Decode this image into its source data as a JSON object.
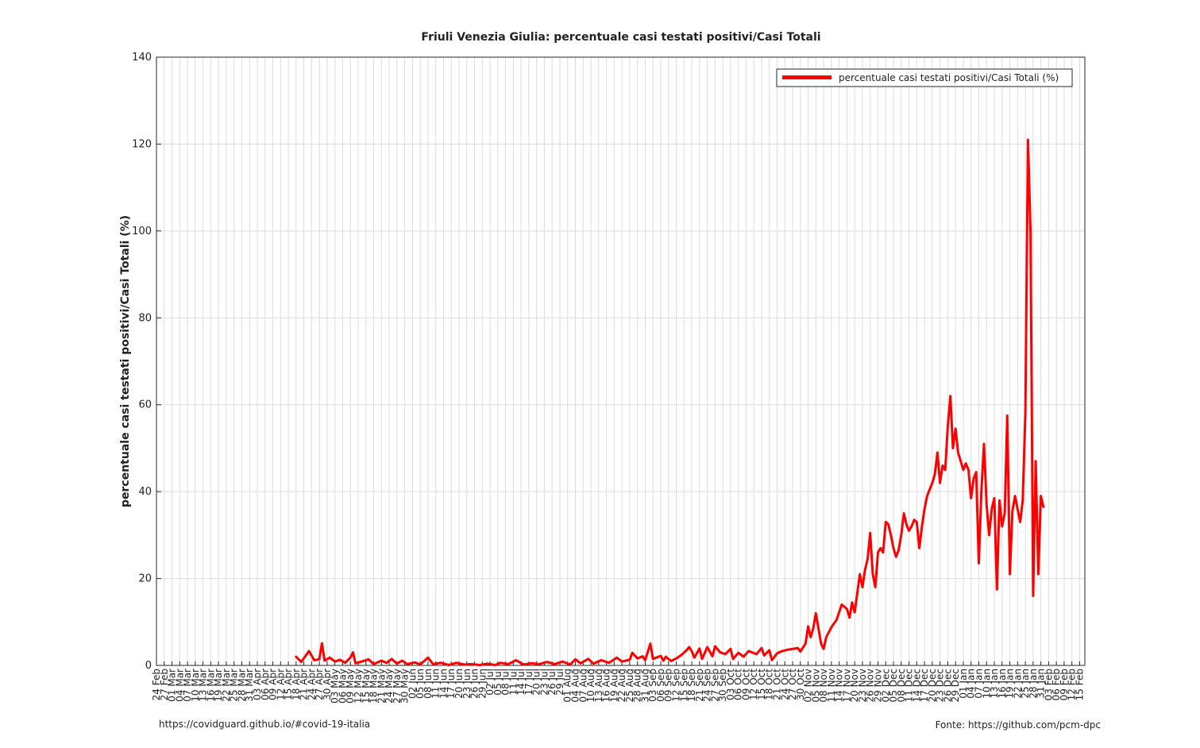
{
  "chart_data": {
    "type": "line",
    "title": "Friuli Venezia Giulia: percentuale casi testati positivi/Casi Totali",
    "xlabel": "",
    "ylabel": "percentuale casi testati positivi/Casi Totali (%)",
    "ylim": [
      0,
      140
    ],
    "yticks": [
      0,
      20,
      40,
      60,
      80,
      100,
      120,
      140
    ],
    "grid": true,
    "legend_placement": "top-right",
    "x_start": "2020-02-24",
    "x_end": "2021-02-17",
    "xtick_labels": [
      "24 Feb",
      "27 Feb",
      "01 Mar",
      "04 Mar",
      "07 Mar",
      "10 Mar",
      "13 Mar",
      "16 Mar",
      "19 Mar",
      "22 Mar",
      "25 Mar",
      "28 Mar",
      "31 Mar",
      "03 Apr",
      "06 Apr",
      "09 Apr",
      "12 Apr",
      "15 Apr",
      "18 Apr",
      "21 Apr",
      "24 Apr",
      "27 Apr",
      "30 Apr",
      "03 May",
      "06 May",
      "09 May",
      "12 May",
      "15 May",
      "18 May",
      "21 May",
      "24 May",
      "27 May",
      "30 May",
      "02 Jun",
      "05 Jun",
      "08 Jun",
      "11 Jun",
      "14 Jun",
      "17 Jun",
      "20 Jun",
      "23 Jun",
      "26 Jun",
      "29 Jun",
      "02 Jul",
      "05 Jul",
      "08 Jul",
      "11 Jul",
      "14 Jul",
      "17 Jul",
      "20 Jul",
      "23 Jul",
      "26 Jul",
      "29 Jul",
      "01 Aug",
      "04 Aug",
      "07 Aug",
      "10 Aug",
      "13 Aug",
      "16 Aug",
      "19 Aug",
      "22 Aug",
      "25 Aug",
      "28 Aug",
      "31 Aug",
      "03 Sep",
      "06 Sep",
      "09 Sep",
      "12 Sep",
      "15 Sep",
      "18 Sep",
      "21 Sep",
      "24 Sep",
      "27 Sep",
      "30 Sep",
      "03 Oct",
      "06 Oct",
      "09 Oct",
      "12 Oct",
      "15 Oct",
      "18 Oct",
      "21 Oct",
      "24 Oct",
      "27 Oct",
      "30 Oct",
      "02 Nov",
      "05 Nov",
      "08 Nov",
      "11 Nov",
      "14 Nov",
      "17 Nov",
      "20 Nov",
      "23 Nov",
      "26 Nov",
      "29 Nov",
      "02 Dec",
      "05 Dec",
      "08 Dec",
      "11 Dec",
      "14 Dec",
      "17 Dec",
      "20 Dec",
      "23 Dec",
      "26 Dec",
      "29 Dec",
      "01 Jan",
      "04 Jan",
      "07 Jan",
      "10 Jan",
      "13 Jan",
      "16 Jan",
      "19 Jan",
      "22 Jan",
      "25 Jan",
      "28 Jan",
      "31 Jan",
      "03 Feb",
      "06 Feb",
      "09 Feb",
      "12 Feb",
      "15 Feb"
    ],
    "series": [
      {
        "name": "percentuale casi testati positivi/Casi Totali (%)",
        "color": "#ff0000",
        "points": [
          [
            "2020-04-18",
            2
          ],
          [
            "2020-04-20",
            0.8
          ],
          [
            "2020-04-22",
            2.5
          ],
          [
            "2020-04-23",
            3.3
          ],
          [
            "2020-04-25",
            1.2
          ],
          [
            "2020-04-27",
            1.4
          ],
          [
            "2020-04-28",
            5.1
          ],
          [
            "2020-04-29",
            1.1
          ],
          [
            "2020-05-01",
            1.8
          ],
          [
            "2020-05-03",
            0.9
          ],
          [
            "2020-05-05",
            1.3
          ],
          [
            "2020-05-07",
            0.6
          ],
          [
            "2020-05-09",
            1.8
          ],
          [
            "2020-05-10",
            3.0
          ],
          [
            "2020-05-11",
            0.5
          ],
          [
            "2020-05-14",
            1.0
          ],
          [
            "2020-05-16",
            1.4
          ],
          [
            "2020-05-18",
            0.3
          ],
          [
            "2020-05-21",
            1.1
          ],
          [
            "2020-05-23",
            0.6
          ],
          [
            "2020-05-25",
            1.5
          ],
          [
            "2020-05-27",
            0.4
          ],
          [
            "2020-05-29",
            1.1
          ],
          [
            "2020-05-31",
            0.3
          ],
          [
            "2020-06-03",
            0.7
          ],
          [
            "2020-06-05",
            0.2
          ],
          [
            "2020-06-08",
            1.8
          ],
          [
            "2020-06-10",
            0.3
          ],
          [
            "2020-06-13",
            0.6
          ],
          [
            "2020-06-16",
            0.1
          ],
          [
            "2020-06-19",
            0.6
          ],
          [
            "2020-06-22",
            0.2
          ],
          [
            "2020-06-25",
            0.3
          ],
          [
            "2020-06-28",
            0.1
          ],
          [
            "2020-07-01",
            0.4
          ],
          [
            "2020-07-04",
            0.1
          ],
          [
            "2020-07-06",
            0.6
          ],
          [
            "2020-07-09",
            0.3
          ],
          [
            "2020-07-12",
            1.2
          ],
          [
            "2020-07-15",
            0.2
          ],
          [
            "2020-07-18",
            0.5
          ],
          [
            "2020-07-21",
            0.3
          ],
          [
            "2020-07-24",
            0.8
          ],
          [
            "2020-07-27",
            0.3
          ],
          [
            "2020-07-30",
            0.9
          ],
          [
            "2020-08-02",
            0.2
          ],
          [
            "2020-08-04",
            1.4
          ],
          [
            "2020-08-06",
            0.5
          ],
          [
            "2020-08-09",
            1.5
          ],
          [
            "2020-08-11",
            0.4
          ],
          [
            "2020-08-14",
            1.2
          ],
          [
            "2020-08-17",
            0.6
          ],
          [
            "2020-08-20",
            1.8
          ],
          [
            "2020-08-22",
            0.9
          ],
          [
            "2020-08-25",
            1.3
          ],
          [
            "2020-08-26",
            2.9
          ],
          [
            "2020-08-28",
            1.6
          ],
          [
            "2020-08-30",
            2.1
          ],
          [
            "2020-08-31",
            1.2
          ],
          [
            "2020-09-02",
            5.0
          ],
          [
            "2020-09-03",
            1.5
          ],
          [
            "2020-09-06",
            2.2
          ],
          [
            "2020-09-07",
            1.1
          ],
          [
            "2020-09-08",
            2.0
          ],
          [
            "2020-09-10",
            1.0
          ],
          [
            "2020-09-12",
            1.6
          ],
          [
            "2020-09-14",
            2.4
          ],
          [
            "2020-09-16",
            3.5
          ],
          [
            "2020-09-17",
            4.2
          ],
          [
            "2020-09-18",
            3.3
          ],
          [
            "2020-09-19",
            1.8
          ],
          [
            "2020-09-21",
            3.9
          ],
          [
            "2020-09-22",
            1.5
          ],
          [
            "2020-09-24",
            4.2
          ],
          [
            "2020-09-26",
            2.1
          ],
          [
            "2020-09-27",
            4.4
          ],
          [
            "2020-09-29",
            3.0
          ],
          [
            "2020-10-01",
            2.6
          ],
          [
            "2020-10-03",
            3.8
          ],
          [
            "2020-10-04",
            1.5
          ],
          [
            "2020-10-06",
            2.9
          ],
          [
            "2020-10-08",
            2.0
          ],
          [
            "2020-10-10",
            3.3
          ],
          [
            "2020-10-13",
            2.6
          ],
          [
            "2020-10-15",
            4.0
          ],
          [
            "2020-10-16",
            2.3
          ],
          [
            "2020-10-18",
            3.5
          ],
          [
            "2020-10-19",
            1.2
          ],
          [
            "2020-10-21",
            2.8
          ],
          [
            "2020-10-23",
            3.3
          ],
          [
            "2020-10-25",
            3.6
          ],
          [
            "2020-10-27",
            3.8
          ],
          [
            "2020-10-29",
            4.0
          ],
          [
            "2020-10-30",
            3.2
          ],
          [
            "2020-11-01",
            5.0
          ],
          [
            "2020-11-02",
            9.0
          ],
          [
            "2020-11-03",
            6.5
          ],
          [
            "2020-11-04",
            8.6
          ],
          [
            "2020-11-05",
            12.0
          ],
          [
            "2020-11-07",
            5.0
          ],
          [
            "2020-11-08",
            3.8
          ],
          [
            "2020-11-09",
            6.5
          ],
          [
            "2020-11-11",
            8.8
          ],
          [
            "2020-11-13",
            10.5
          ],
          [
            "2020-11-15",
            14.0
          ],
          [
            "2020-11-17",
            13.0
          ],
          [
            "2020-11-18",
            11.0
          ],
          [
            "2020-11-19",
            14.5
          ],
          [
            "2020-11-20",
            12.2
          ],
          [
            "2020-11-22",
            21.0
          ],
          [
            "2020-11-23",
            18.0
          ],
          [
            "2020-11-24",
            22.0
          ],
          [
            "2020-11-25",
            24.5
          ],
          [
            "2020-11-26",
            30.5
          ],
          [
            "2020-11-27",
            21.0
          ],
          [
            "2020-11-28",
            18.0
          ],
          [
            "2020-11-29",
            26.0
          ],
          [
            "2020-11-30",
            27.0
          ],
          [
            "2020-12-01",
            26.0
          ],
          [
            "2020-12-02",
            33.0
          ],
          [
            "2020-12-03",
            32.5
          ],
          [
            "2020-12-04",
            30.0
          ],
          [
            "2020-12-05",
            27.0
          ],
          [
            "2020-12-06",
            25.0
          ],
          [
            "2020-12-07",
            26.5
          ],
          [
            "2020-12-08",
            30.0
          ],
          [
            "2020-12-09",
            35.0
          ],
          [
            "2020-12-10",
            32.5
          ],
          [
            "2020-12-11",
            31.0
          ],
          [
            "2020-12-12",
            32.0
          ],
          [
            "2020-12-13",
            33.5
          ],
          [
            "2020-12-14",
            33.0
          ],
          [
            "2020-12-15",
            27.0
          ],
          [
            "2020-12-16",
            32.0
          ],
          [
            "2020-12-17",
            36.0
          ],
          [
            "2020-12-18",
            39.0
          ],
          [
            "2020-12-20",
            42.0
          ],
          [
            "2020-12-21",
            44.0
          ],
          [
            "2020-12-22",
            49.0
          ],
          [
            "2020-12-23",
            42.0
          ],
          [
            "2020-12-24",
            46.0
          ],
          [
            "2020-12-25",
            45.0
          ],
          [
            "2020-12-26",
            55.0
          ],
          [
            "2020-12-27",
            62.0
          ],
          [
            "2020-12-28",
            50.0
          ],
          [
            "2020-12-29",
            54.5
          ],
          [
            "2020-12-30",
            49.0
          ],
          [
            "2020-12-31",
            47.0
          ],
          [
            "2021-01-01",
            45.0
          ],
          [
            "2021-01-02",
            46.5
          ],
          [
            "2021-01-03",
            45.0
          ],
          [
            "2021-01-04",
            38.5
          ],
          [
            "2021-01-05",
            43.0
          ],
          [
            "2021-01-06",
            44.5
          ],
          [
            "2021-01-07",
            23.5
          ],
          [
            "2021-01-08",
            40.0
          ],
          [
            "2021-01-09",
            51.0
          ],
          [
            "2021-01-10",
            37.0
          ],
          [
            "2021-01-11",
            30.0
          ],
          [
            "2021-01-12",
            36.0
          ],
          [
            "2021-01-13",
            38.5
          ],
          [
            "2021-01-14",
            17.5
          ],
          [
            "2021-01-15",
            38.0
          ],
          [
            "2021-01-16",
            32.0
          ],
          [
            "2021-01-17",
            35.0
          ],
          [
            "2021-01-18",
            57.5
          ],
          [
            "2021-01-19",
            21.0
          ],
          [
            "2021-01-20",
            35.5
          ],
          [
            "2021-01-21",
            39.0
          ],
          [
            "2021-01-22",
            36.0
          ],
          [
            "2021-01-23",
            33.0
          ],
          [
            "2021-01-24",
            38.0
          ],
          [
            "2021-01-25",
            58.0
          ],
          [
            "2021-01-26",
            121.0
          ],
          [
            "2021-01-27",
            100.0
          ],
          [
            "2021-01-28",
            16.0
          ],
          [
            "2021-01-29",
            47.0
          ],
          [
            "2021-01-30",
            21.0
          ],
          [
            "2021-01-31",
            39.0
          ],
          [
            "2021-02-01",
            36.5
          ]
        ]
      }
    ]
  },
  "footer": {
    "left": "https://covidguard.github.io/#covid-19-italia",
    "right": "Fonte: https://github.com/pcm-dpc"
  }
}
